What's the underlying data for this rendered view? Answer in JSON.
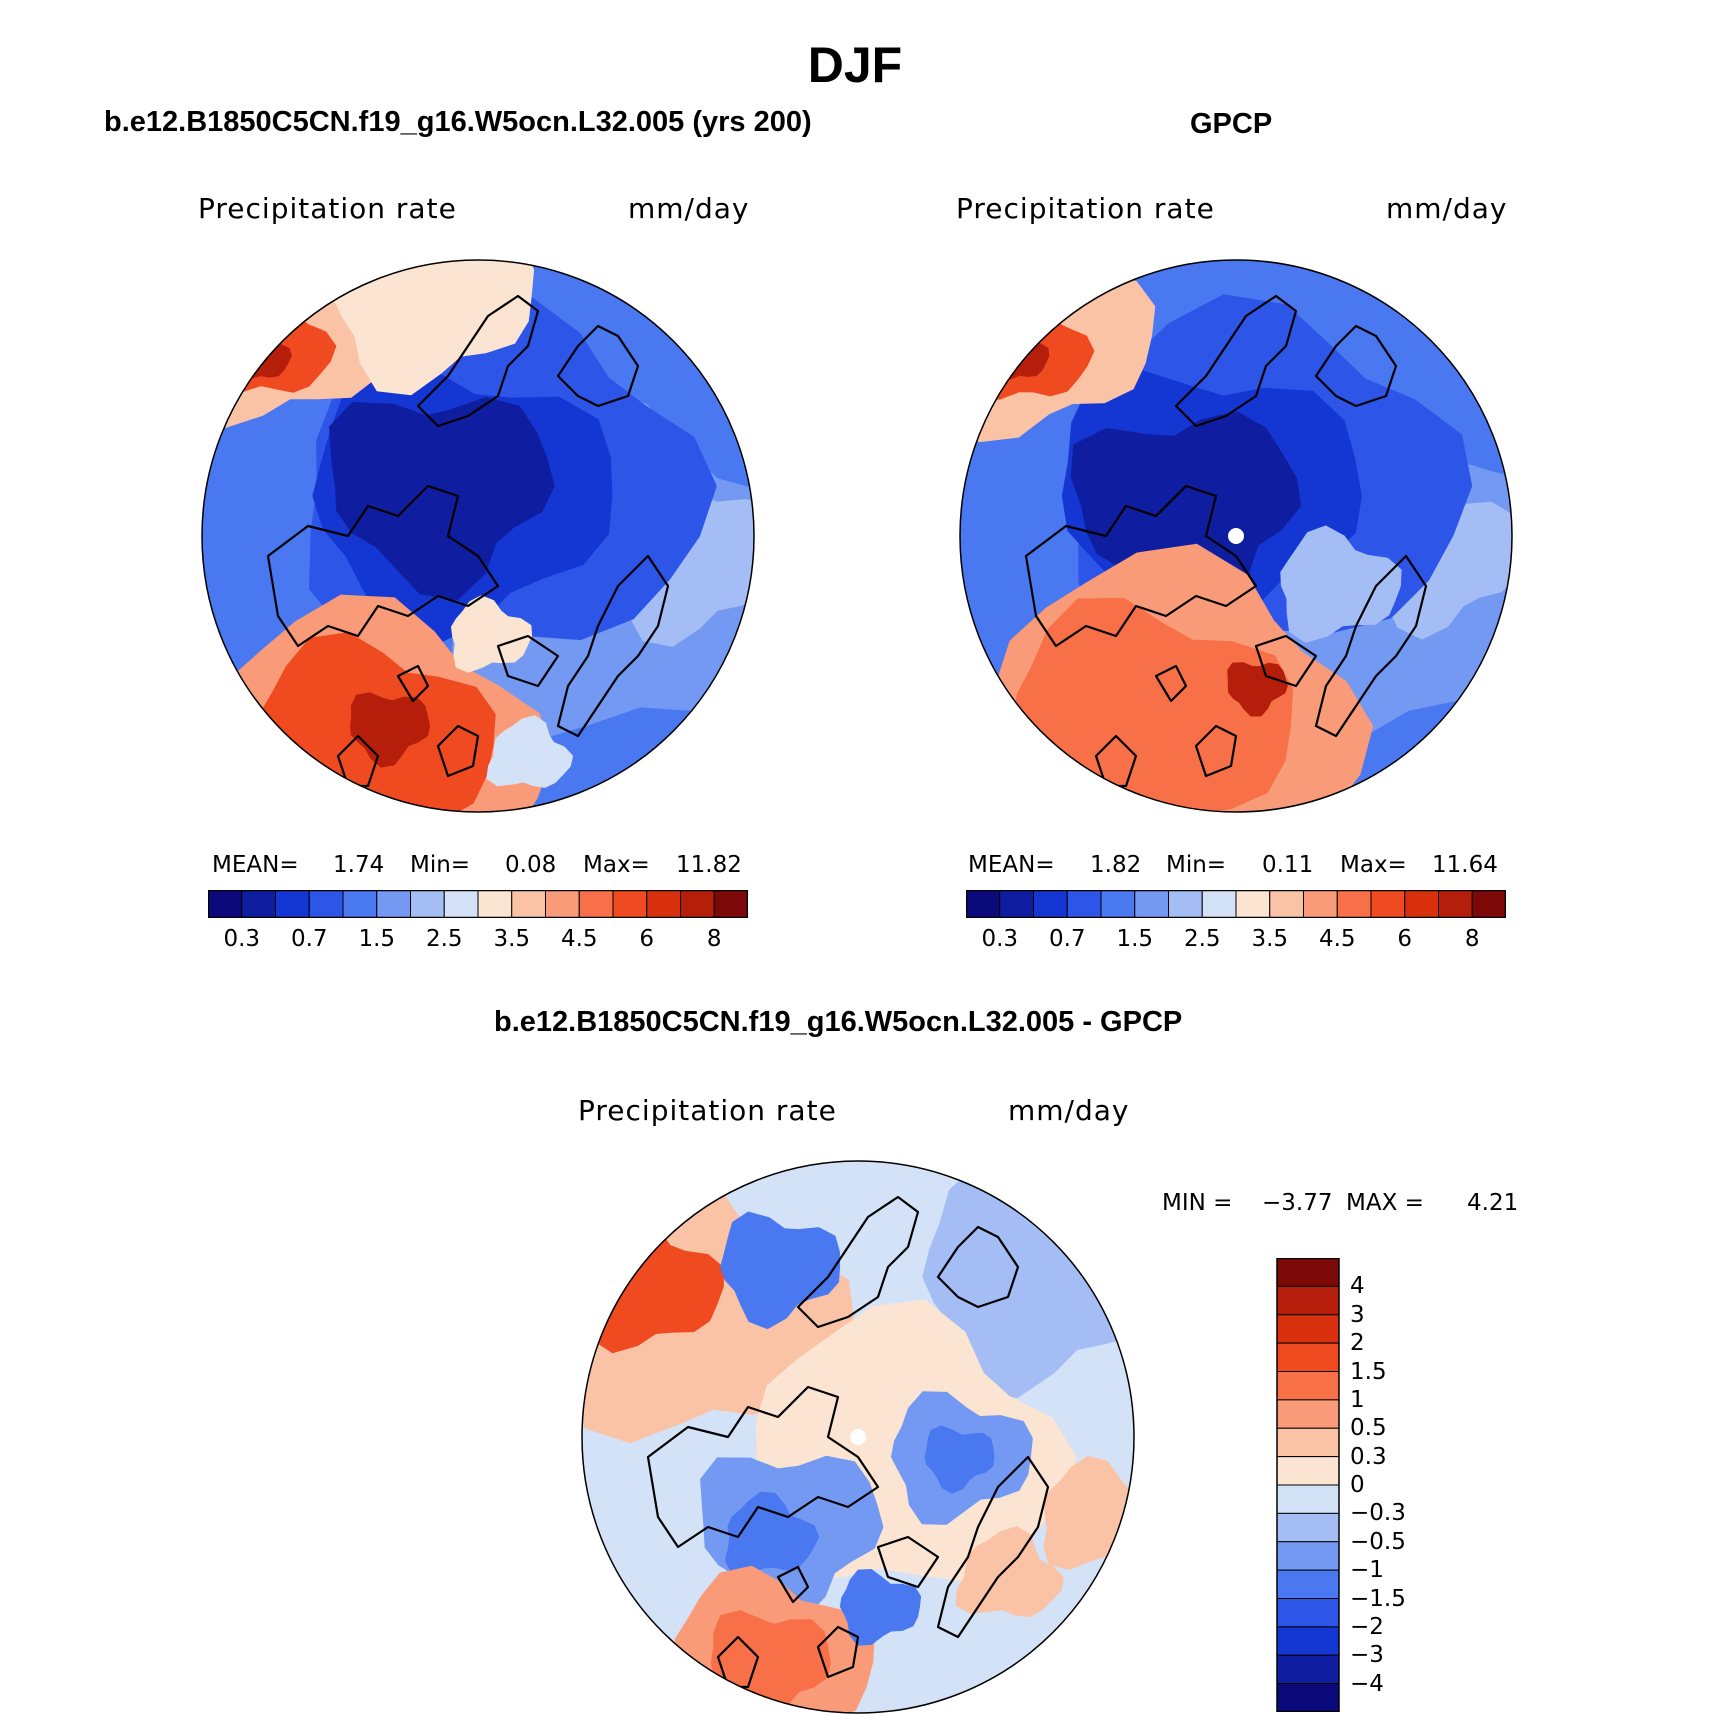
{
  "title": "DJF",
  "panels": [
    {
      "id": "model",
      "title": "b.e12.B1850C5CN.f19_g16.W5ocn.L32.005 (yrs 200)",
      "variable": "Precipitation rate",
      "units": "mm/day",
      "stats": {
        "mean_label": "MEAN=",
        "mean": "1.74",
        "min_label": "Min=",
        "min": "0.08",
        "max_label": "Max=",
        "max": "11.82"
      },
      "colorbar_ticks": [
        "0.3",
        "0.7",
        "1.5",
        "2.5",
        "3.5",
        "4.5",
        "6",
        "8"
      ],
      "pole_dot": false
    },
    {
      "id": "obs",
      "title": "GPCP",
      "variable": "Precipitation rate",
      "units": "mm/day",
      "stats": {
        "mean_label": "MEAN=",
        "mean": "1.82",
        "min_label": "Min=",
        "min": "0.11",
        "max_label": "Max=",
        "max": "11.64"
      },
      "colorbar_ticks": [
        "0.3",
        "0.7",
        "1.5",
        "2.5",
        "3.5",
        "4.5",
        "6",
        "8"
      ],
      "pole_dot": true
    }
  ],
  "diff": {
    "title": "b.e12.B1850C5CN.f19_g16.W5ocn.L32.005 - GPCP",
    "variable": "Precipitation rate",
    "units": "mm/day",
    "stats": {
      "min_label": "MIN =",
      "min": "−3.77",
      "max_label": "MAX =",
      "max": "4.21"
    },
    "colorbar_ticks": [
      "4",
      "3",
      "2",
      "1.5",
      "1",
      "0.5",
      "0.3",
      "0",
      "−0.3",
      "−0.5",
      "−1",
      "−1.5",
      "−2",
      "−3",
      "−4"
    ]
  },
  "colors": {
    "abs_scale": [
      "#0a0a7a",
      "#0f1ea0",
      "#1436d2",
      "#2d55e8",
      "#4a78f0",
      "#7399f2",
      "#a4bdf5",
      "#d4e2f8",
      "#fbe4d2",
      "#fbc3a6",
      "#f99b78",
      "#f77048",
      "#ef4a20",
      "#d8300c",
      "#b41e0a",
      "#7c0808"
    ],
    "diff_scale": [
      "#7c0808",
      "#b41e0a",
      "#d8300c",
      "#ef4a20",
      "#f77048",
      "#f99b78",
      "#fbc3a6",
      "#fbe4d2",
      "#d4e2f8",
      "#a4bdf5",
      "#7399f2",
      "#4a78f0",
      "#2d55e8",
      "#1436d2",
      "#0f1ea0",
      "#0a0a7a"
    ]
  }
}
